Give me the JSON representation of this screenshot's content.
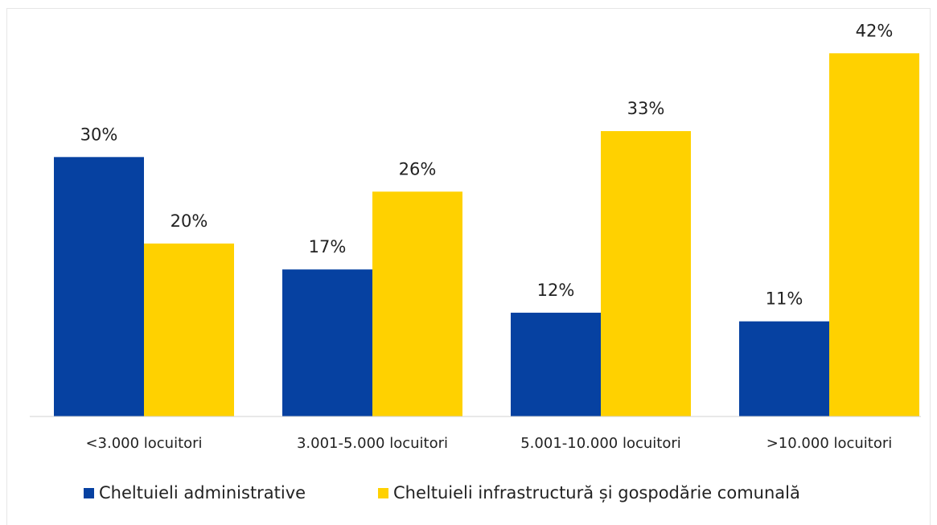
{
  "chart_data": {
    "type": "bar",
    "categories": [
      "<3.000 locuitori",
      "3.001-5.000 locuitori",
      "5.001-10.000 locuitori",
      ">10.000 locuitori"
    ],
    "series": [
      {
        "name": "Cheltuieli administrative",
        "color": "#0641a1",
        "values": [
          30,
          17,
          12,
          11
        ],
        "value_labels": [
          "30%",
          "17%",
          "12%",
          "11%"
        ]
      },
      {
        "name": "Cheltuieli infrastructură și gospodărie comunală",
        "color": "#ffd100",
        "values": [
          20,
          26,
          33,
          42
        ],
        "value_labels": [
          "20%",
          "26%",
          "33%",
          "42%"
        ]
      }
    ],
    "ylim": [
      0,
      45
    ],
    "legend": "bottom"
  }
}
